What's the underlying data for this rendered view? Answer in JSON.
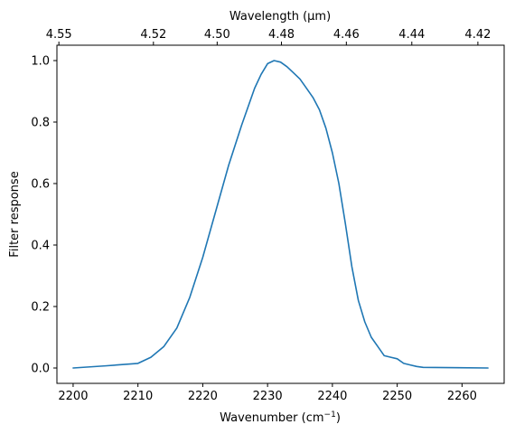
{
  "chart_data": {
    "type": "line",
    "xlabel": "Wavenumber (cm",
    "xlabel_sup": "−1",
    "xlabel_end": ")",
    "ylabel": "Filter response",
    "x2label": "Wavelength (μm)",
    "xlim": [
      2197.5,
      2266.5
    ],
    "ylim": [
      -0.05,
      1.05
    ],
    "xticks": [
      2200,
      2210,
      2220,
      2230,
      2240,
      2250,
      2260
    ],
    "yticks": [
      0.0,
      0.2,
      0.4,
      0.6,
      0.8,
      1.0
    ],
    "ytick_labels": [
      "0.0",
      "0.2",
      "0.4",
      "0.6",
      "0.8",
      "1.0"
    ],
    "x2ticks": [
      4.55,
      4.52,
      4.5,
      4.48,
      4.46,
      4.44,
      4.42
    ],
    "x2tick_labels": [
      "4.55",
      "4.52",
      "4.50",
      "4.48",
      "4.46",
      "4.44",
      "4.42"
    ],
    "line_color": "#1f77b4",
    "series": [
      {
        "x": [
          2200,
          2205,
          2210,
          2212,
          2214,
          2216,
          2218,
          2220,
          2222,
          2224,
          2226,
          2228,
          2229,
          2230,
          2231,
          2232,
          2233,
          2234,
          2235,
          2236,
          2237,
          2238,
          2239,
          2240,
          2241,
          2242,
          2243,
          2244,
          2245,
          2246,
          2247,
          2248,
          2249,
          2250,
          2251,
          2252,
          2253,
          2254,
          2264
        ],
        "y": [
          0.0,
          0.007,
          0.015,
          0.035,
          0.07,
          0.13,
          0.23,
          0.36,
          0.51,
          0.66,
          0.79,
          0.91,
          0.955,
          0.99,
          1.0,
          0.995,
          0.98,
          0.96,
          0.94,
          0.91,
          0.88,
          0.84,
          0.78,
          0.7,
          0.6,
          0.47,
          0.33,
          0.22,
          0.15,
          0.1,
          0.07,
          0.04,
          0.035,
          0.03,
          0.015,
          0.01,
          0.005,
          0.002,
          0.0
        ]
      }
    ]
  }
}
